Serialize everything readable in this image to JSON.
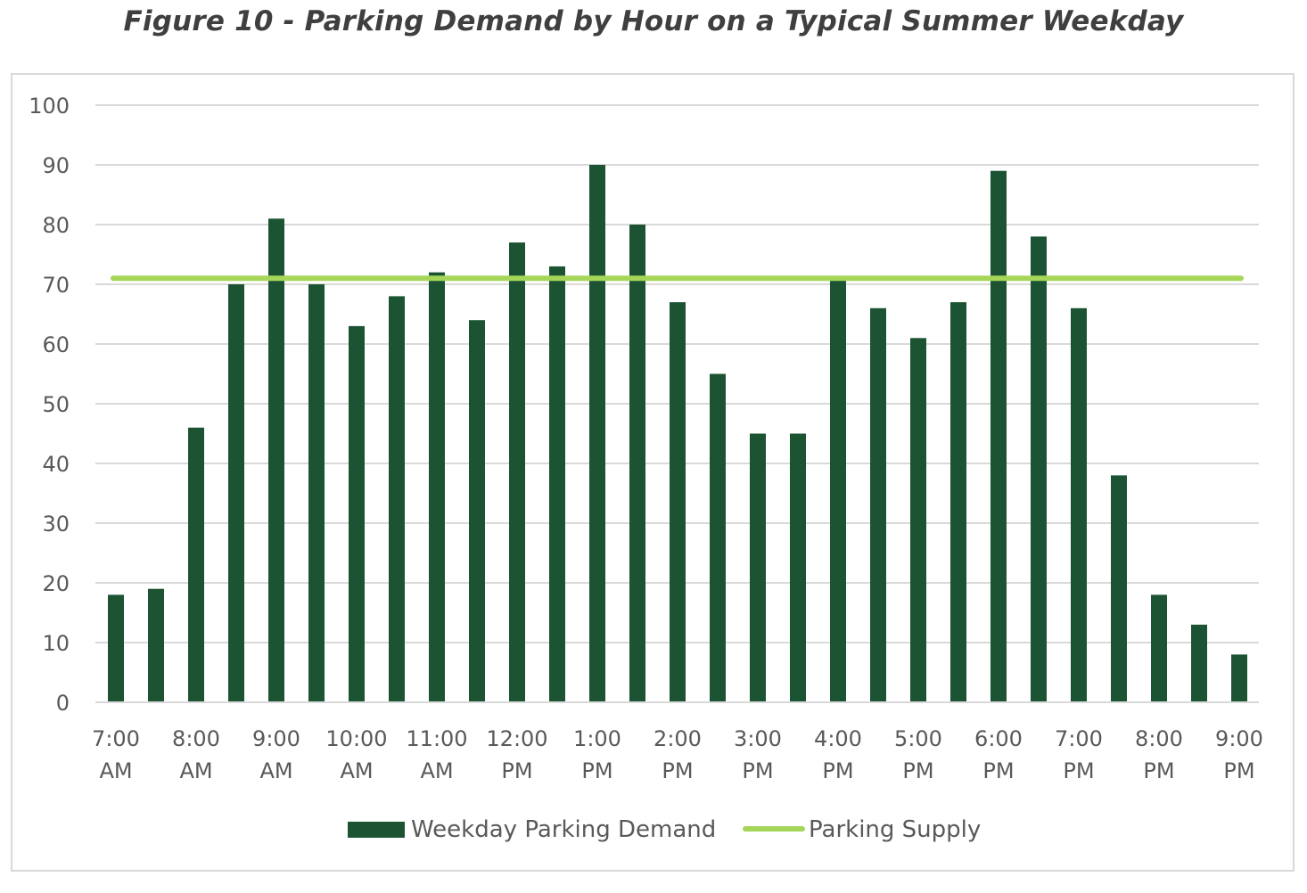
{
  "figure": {
    "title": "Figure 10 - Parking Demand by Hour on a Typical Summer Weekday"
  },
  "chart_data": {
    "type": "bar",
    "title": "Figure 10 - Parking Demand by Hour on a Typical Summer Weekday",
    "xlabel": "",
    "ylabel": "",
    "ylim": [
      0,
      100
    ],
    "yticks": [
      0,
      10,
      20,
      30,
      40,
      50,
      60,
      70,
      80,
      90,
      100
    ],
    "grid": true,
    "legend_position": "bottom",
    "x_tick_labels": [
      [
        "7:00",
        "AM"
      ],
      [
        "8:00",
        "AM"
      ],
      [
        "9:00",
        "AM"
      ],
      [
        "10:00",
        "AM"
      ],
      [
        "11:00",
        "AM"
      ],
      [
        "12:00",
        "PM"
      ],
      [
        "1:00",
        "PM"
      ],
      [
        "2:00",
        "PM"
      ],
      [
        "3:00",
        "PM"
      ],
      [
        "4:00",
        "PM"
      ],
      [
        "5:00",
        "PM"
      ],
      [
        "6:00",
        "PM"
      ],
      [
        "7:00",
        "PM"
      ],
      [
        "8:00",
        "PM"
      ],
      [
        "9:00",
        "PM"
      ]
    ],
    "series": [
      {
        "name": "Weekday Parking Demand",
        "kind": "bar",
        "color": "#1c5433",
        "values": [
          18,
          19,
          46,
          70,
          81,
          70,
          63,
          68,
          72,
          64,
          77,
          73,
          90,
          80,
          67,
          55,
          45,
          45,
          71,
          66,
          61,
          67,
          89,
          78,
          66,
          38,
          18,
          13,
          8
        ]
      },
      {
        "name": "Parking Supply",
        "kind": "line",
        "color": "#a5d65a",
        "value": 71
      }
    ]
  }
}
